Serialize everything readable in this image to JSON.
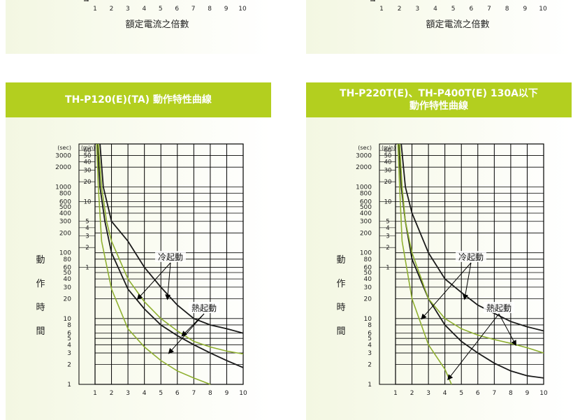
{
  "x_axis_label": "額定電流之倍數",
  "y_axis_label_chars": [
    "動",
    "作",
    "時",
    "間"
  ],
  "x_ticks": [
    "1",
    "2",
    "3",
    "4",
    "5",
    "6",
    "7",
    "8",
    "9",
    "10"
  ],
  "y_unit_sec": "(sec)",
  "y_unit_min": "(min)",
  "sec_ticks": [
    {
      "v": 3000,
      "t": "3000"
    },
    {
      "v": 2000,
      "t": "2000"
    },
    {
      "v": 1000,
      "t": "1000"
    },
    {
      "v": 800,
      "t": "800"
    },
    {
      "v": 600,
      "t": "600"
    },
    {
      "v": 500,
      "t": "500"
    },
    {
      "v": 400,
      "t": "400"
    },
    {
      "v": 300,
      "t": "300"
    },
    {
      "v": 200,
      "t": "200"
    },
    {
      "v": 100,
      "t": "100"
    },
    {
      "v": 80,
      "t": "80"
    },
    {
      "v": 60,
      "t": "60"
    },
    {
      "v": 50,
      "t": "50"
    },
    {
      "v": 40,
      "t": "40"
    },
    {
      "v": 30,
      "t": "30"
    },
    {
      "v": 20,
      "t": "20"
    },
    {
      "v": 10,
      "t": "10"
    },
    {
      "v": 8,
      "t": "8"
    },
    {
      "v": 6,
      "t": "6"
    },
    {
      "v": 5,
      "t": "5"
    },
    {
      "v": 4,
      "t": "4"
    },
    {
      "v": 3,
      "t": "3"
    },
    {
      "v": 2,
      "t": "2"
    },
    {
      "v": 1,
      "t": "1"
    }
  ],
  "min_ticks": [
    {
      "v": 3600,
      "t": "60"
    },
    {
      "v": 3000,
      "t": "50"
    },
    {
      "v": 2400,
      "t": "40"
    },
    {
      "v": 1800,
      "t": "30"
    },
    {
      "v": 1200,
      "t": "20"
    },
    {
      "v": 600,
      "t": "10"
    },
    {
      "v": 300,
      "t": "5"
    },
    {
      "v": 240,
      "t": "4"
    },
    {
      "v": 180,
      "t": "3"
    },
    {
      "v": 120,
      "t": "2"
    },
    {
      "v": 60,
      "t": "1"
    }
  ],
  "colors": {
    "title_bar": "#b3cf1f",
    "cold_curve": "#1a1a1a",
    "hot_curve": "#8fb030"
  },
  "top_panels": [
    {
      "x_axis_label": "額定電流之倍數"
    },
    {
      "x_axis_label": "額定電流之倍數"
    }
  ],
  "chart_data": [
    {
      "type": "line",
      "title": "TH-P120(E)(TA) 動作特性曲線",
      "xlabel": "額定電流之倍數",
      "ylabel": "動作時間",
      "xlim": [
        1,
        10
      ],
      "ylim": [
        1,
        4500
      ],
      "yscale": "log",
      "annotations": [
        {
          "text": "冷起動",
          "points_to": "冷起動 curves"
        },
        {
          "text": "熱起動",
          "points_to": "熱起動 curves"
        }
      ],
      "series": [
        {
          "name": "冷起動",
          "color": "#1a1a1a",
          "points": [
            [
              1.3,
              4500
            ],
            [
              1.5,
              1000
            ],
            [
              2,
              300
            ],
            [
              3,
              150
            ],
            [
              4,
              60
            ],
            [
              5,
              30
            ],
            [
              6,
              16
            ],
            [
              7,
              10
            ],
            [
              8,
              8
            ],
            [
              9,
              7
            ],
            [
              10,
              6
            ]
          ]
        },
        {
          "name": "冷起動",
          "color": "#1a1a1a",
          "points": [
            [
              1.15,
              4500
            ],
            [
              1.3,
              1000
            ],
            [
              1.6,
              300
            ],
            [
              2,
              100
            ],
            [
              3,
              28
            ],
            [
              4,
              14
            ],
            [
              5,
              8
            ],
            [
              6,
              5.5
            ],
            [
              7,
              4
            ],
            [
              8,
              3
            ],
            [
              9,
              2.3
            ],
            [
              10,
              1.8
            ]
          ]
        },
        {
          "name": "熱起動",
          "color": "#8fb030",
          "points": [
            [
              1.2,
              4500
            ],
            [
              1.4,
              1000
            ],
            [
              1.7,
              300
            ],
            [
              2,
              150
            ],
            [
              3,
              40
            ],
            [
              4,
              18
            ],
            [
              5,
              10
            ],
            [
              6,
              6.5
            ],
            [
              7,
              4.5
            ],
            [
              8,
              3.7
            ],
            [
              9,
              3.2
            ],
            [
              10,
              2.9
            ]
          ]
        },
        {
          "name": "熱起動",
          "color": "#8fb030",
          "points": [
            [
              1.1,
              4500
            ],
            [
              1.2,
              1000
            ],
            [
              1.4,
              150
            ],
            [
              2,
              28
            ],
            [
              3,
              7
            ],
            [
              4,
              3.7
            ],
            [
              5,
              2.3
            ],
            [
              6,
              1.6
            ],
            [
              7,
              1.25
            ],
            [
              8,
              1
            ]
          ]
        }
      ]
    },
    {
      "type": "line",
      "title": "TH-P220T(E)、TH-P400T(E) 130A以下\n動作特性曲線",
      "xlabel": "額定電流之倍數",
      "ylabel": "動作時間",
      "xlim": [
        1,
        10
      ],
      "ylim": [
        1,
        4500
      ],
      "yscale": "log",
      "annotations": [
        {
          "text": "冷起動",
          "points_to": "冷起動 curves"
        },
        {
          "text": "熱起動",
          "points_to": "熱起動 curves"
        }
      ],
      "series": [
        {
          "name": "冷起動",
          "color": "#1a1a1a",
          "points": [
            [
              1.35,
              4500
            ],
            [
              1.6,
              1000
            ],
            [
              2,
              400
            ],
            [
              3,
              100
            ],
            [
              4,
              40
            ],
            [
              5,
              25
            ],
            [
              6,
              16
            ],
            [
              7,
              12
            ],
            [
              8,
              9
            ],
            [
              9,
              7.5
            ],
            [
              10,
              6.5
            ]
          ]
        },
        {
          "name": "冷起動",
          "color": "#1a1a1a",
          "points": [
            [
              1.2,
              4500
            ],
            [
              1.35,
              1000
            ],
            [
              1.6,
              300
            ],
            [
              2,
              80
            ],
            [
              3,
              20
            ],
            [
              4,
              8
            ],
            [
              5,
              4.5
            ],
            [
              6,
              3
            ],
            [
              7,
              2.1
            ],
            [
              8,
              1.6
            ],
            [
              9,
              1.35
            ],
            [
              10,
              1.25
            ]
          ]
        },
        {
          "name": "熱起動",
          "color": "#8fb030",
          "points": [
            [
              1.25,
              4500
            ],
            [
              1.4,
              1000
            ],
            [
              1.6,
              300
            ],
            [
              2,
              100
            ],
            [
              3,
              20
            ],
            [
              4,
              10
            ],
            [
              5,
              7
            ],
            [
              6,
              5.6
            ],
            [
              7,
              4.8
            ],
            [
              8,
              4.2
            ],
            [
              9,
              3.6
            ],
            [
              10,
              3
            ]
          ]
        },
        {
          "name": "熱起動",
          "color": "#8fb030",
          "points": [
            [
              1.15,
              4500
            ],
            [
              1.25,
              1000
            ],
            [
              1.4,
              150
            ],
            [
              2,
              20
            ],
            [
              3,
              4
            ],
            [
              4,
              1.7
            ],
            [
              4.4,
              1
            ]
          ]
        }
      ]
    }
  ]
}
